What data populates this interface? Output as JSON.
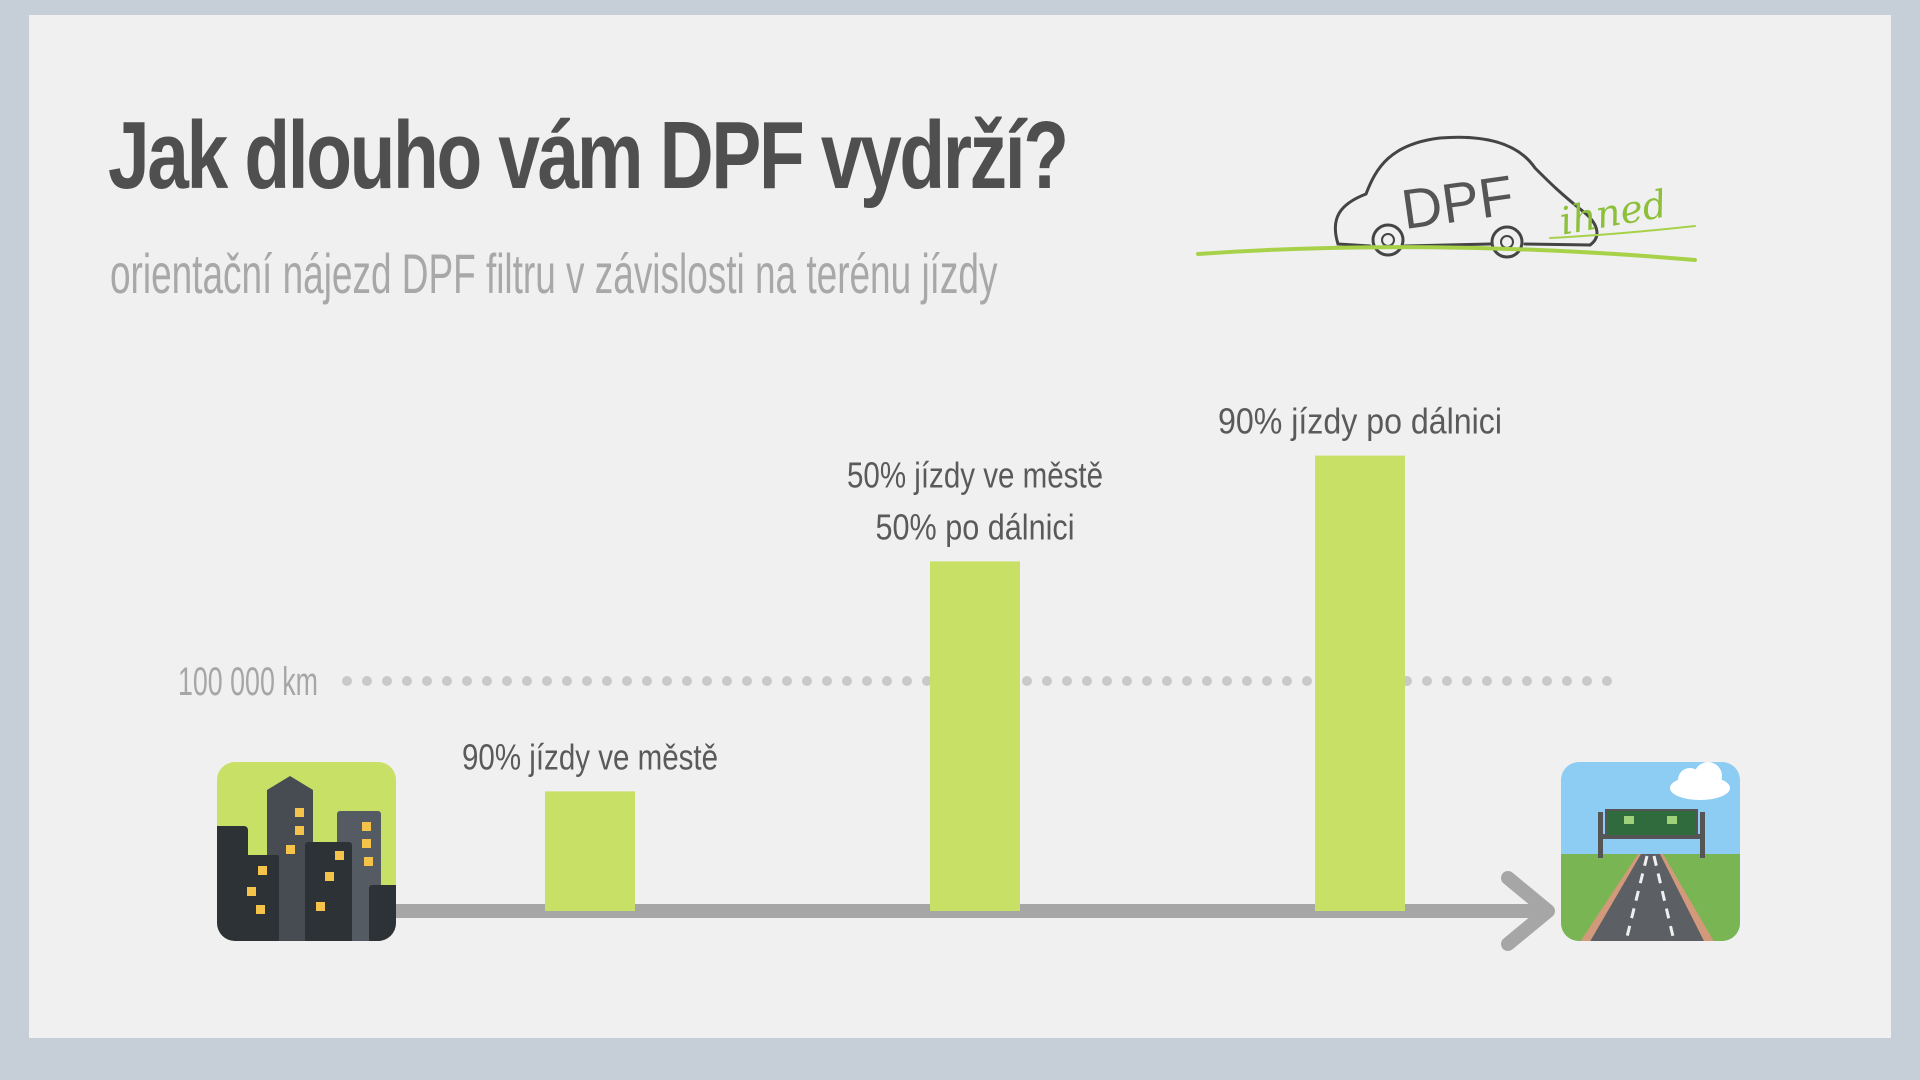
{
  "title": "Jak dlouho vám DPF vydrží?",
  "subtitle": "orientační nájezd DPF filtru v závislosti na terénu jízdy",
  "logo": {
    "main": "DPF",
    "script": "ihned",
    "accent_color": "#a8d14a"
  },
  "colors": {
    "bar": "#c8e066",
    "axis": "#a6a6a6",
    "text": "#4f4f4f"
  },
  "icons": {
    "start": "city-buildings-icon",
    "end": "highway-road-icon"
  },
  "chart_data": {
    "type": "bar",
    "title": "Jak dlouho vám DPF vydrží?",
    "subtitle": "orientační nájezd DPF filtru v závislosti na terénu jízdy",
    "categories": [
      [
        "90% jízdy ve městě"
      ],
      [
        "50% jízdy ve městě",
        "50% po dálnici"
      ],
      [
        "90% jízdy po dálnici"
      ]
    ],
    "values": [
      52000,
      152000,
      198000
    ],
    "reference_line": {
      "value": 100000,
      "label": "100 000 km",
      "style": "dotted"
    },
    "ylim": [
      0,
      200000
    ],
    "xlabel": "",
    "ylabel": "",
    "grid": false,
    "legend": "none"
  }
}
